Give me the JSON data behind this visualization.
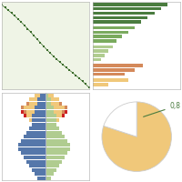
{
  "area_color": "#eff4e6",
  "dot_color": "#3a6b2a",
  "bar_groups": [
    {
      "color": "#4a7c3f",
      "bars": [
        90,
        82,
        74,
        66,
        58
      ]
    },
    {
      "color": "#7aaa5e",
      "bars": [
        50,
        42,
        35,
        28
      ]
    },
    {
      "color": "#b0cc90",
      "bars": [
        24,
        18,
        14,
        10
      ]
    },
    {
      "color": "#d4895a",
      "bars": [
        60,
        50,
        38
      ]
    },
    {
      "color": "#f0c87a",
      "bars": [
        42,
        18
      ]
    }
  ],
  "pyramid_male_color": "#5577aa",
  "pyramid_green_color": "#b0cc90",
  "pyramid_yellow_color": "#f0c87a",
  "pyramid_orange_color": "#d4895a",
  "pyramid_red_color": "#cc2222",
  "pie_main_color": "#f0c87a",
  "pie_label": "0,8",
  "pie_label_color": "#4a7c3f",
  "bg_color": "#ffffff"
}
